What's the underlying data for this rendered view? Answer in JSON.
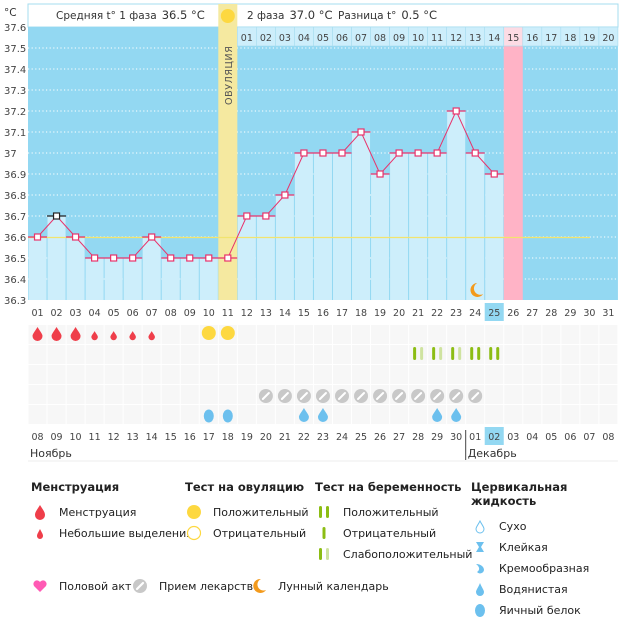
{
  "chart_data": {
    "type": "line",
    "title": "",
    "ylabel": "°C",
    "ylim": [
      36.3,
      37.6
    ],
    "yticks": [
      "37.6",
      "37.5",
      "37.4",
      "37.3",
      "37.2",
      "37.1",
      "37",
      "36.9",
      "36.8",
      "36.7",
      "36.6",
      "36.5",
      "36.4",
      "36.3"
    ],
    "cycle_days": [
      "01",
      "02",
      "03",
      "04",
      "05",
      "06",
      "07",
      "08",
      "09",
      "10",
      "11",
      "12",
      "13",
      "14",
      "15",
      "16",
      "17",
      "18",
      "19",
      "20",
      "21",
      "22",
      "23",
      "24",
      "25",
      "26",
      "27",
      "28",
      "29",
      "30",
      "31"
    ],
    "phase2_days": [
      "01",
      "02",
      "03",
      "04",
      "05",
      "06",
      "07",
      "08",
      "09",
      "10",
      "11",
      "12",
      "13",
      "14",
      "15",
      "16",
      "17",
      "18",
      "19",
      "20"
    ],
    "temperatures": [
      36.6,
      36.7,
      36.6,
      36.5,
      36.5,
      36.5,
      36.6,
      36.5,
      36.5,
      36.5,
      36.5,
      36.7,
      36.7,
      36.8,
      37.0,
      37.0,
      37.0,
      37.1,
      36.9,
      37.0,
      37.0,
      37.0,
      37.2,
      37.0,
      36.9
    ],
    "highlighted_point_day": 2,
    "coverline": 36.6,
    "ovulation_day": 11,
    "expected_period_day": 26,
    "current_day": 25,
    "moon_day": 24,
    "dates": [
      "08",
      "09",
      "10",
      "11",
      "12",
      "13",
      "14",
      "15",
      "16",
      "17",
      "18",
      "19",
      "20",
      "21",
      "22",
      "23",
      "24",
      "25",
      "26",
      "27",
      "28",
      "29",
      "30",
      "01",
      "02",
      "03",
      "04",
      "05",
      "06",
      "07",
      "08"
    ],
    "red_dates": [
      0,
      6,
      7,
      13,
      14,
      20,
      21,
      27,
      28
    ],
    "current_date_index": 24,
    "month_labels": [
      {
        "label": "Ноябрь",
        "start_index": 0
      },
      {
        "label": "Декабрь",
        "start_index": 23
      }
    ],
    "menstruation": {
      "heavy": [
        1,
        2,
        3
      ],
      "light": [
        4,
        5,
        6,
        7
      ]
    },
    "ovulation_tests": {
      "positive": [
        10,
        11
      ],
      "negative": []
    },
    "pregnancy_tests": {
      "weak": [
        21,
        22,
        23
      ],
      "positive": [
        24,
        25
      ]
    },
    "medication_days": [
      13,
      14,
      15,
      16,
      17,
      18,
      19,
      20,
      21,
      22,
      23,
      24
    ],
    "cervical_fluid": {
      "egg_white": [
        10,
        11
      ],
      "watery": [
        15,
        16,
        22,
        23
      ]
    }
  },
  "header": {
    "unit": "°C",
    "phase1": "Средняя t° 1 фаза",
    "phase1_value": "36.5 °C",
    "phase2": "2 фаза",
    "phase2_value": "37.0 °C",
    "diff": "Разница t°",
    "diff_value": "0.5 °C",
    "ovulation_label": "ОВУЛЯЦИЯ"
  },
  "legend": {
    "menstruation": {
      "title": "Менструация",
      "items": [
        "Менструация",
        "Небольшие выделения"
      ]
    },
    "ovulation": {
      "title": "Тест на овуляцию",
      "items": [
        "Положительный",
        "Отрицательный"
      ]
    },
    "pregnancy": {
      "title": "Тест на беременность",
      "items": [
        "Положительный",
        "Отрицательный",
        "Слабоположительный"
      ]
    },
    "cervical": {
      "title": "Цервикальная жидкость",
      "items": [
        "Сухо",
        "Клейкая",
        "Кремообразная",
        "Водянистая",
        "Яичный белок"
      ]
    },
    "bottom": [
      "Половой акт",
      "Прием лекарств",
      "Лунный календарь"
    ]
  },
  "colors": {
    "sky": "#93d8f2",
    "bar": "#cdeefb",
    "ovulation": "#f5e9a0",
    "period": "#ffb3c6",
    "line": "#e8336b",
    "coverline": "#f2e46e",
    "blood": "#ef3e4a",
    "yellow": "#fdd840",
    "green": "#8cbd14",
    "green_light": "#cfe3a0",
    "pill": "#c8c8c8",
    "drop": "#6cc0ee",
    "moon": "#f39a1c",
    "heart": "#ff5ab4",
    "red_date": "#e8336b"
  }
}
